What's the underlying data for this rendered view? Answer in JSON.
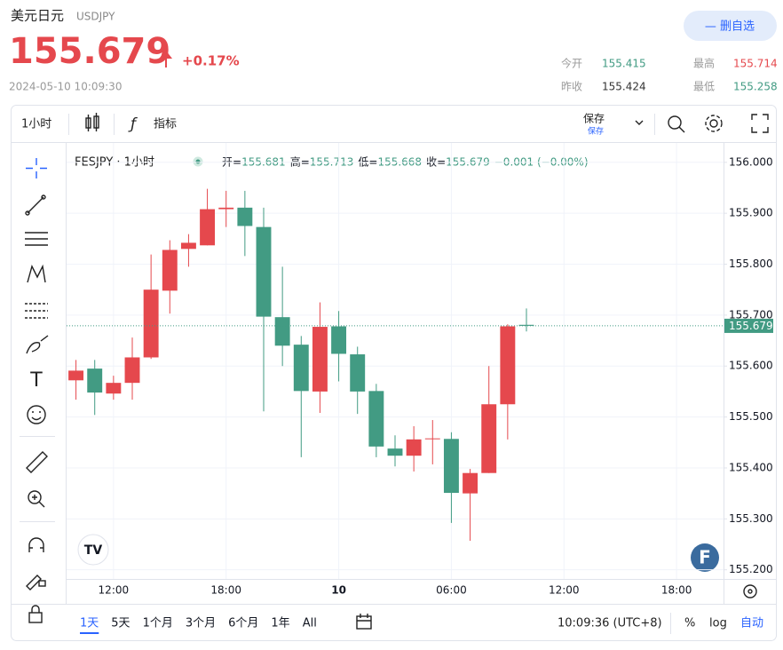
{
  "header": {
    "name": "美元日元",
    "symbol": "USDJPY",
    "price": "155.679",
    "change": "+0.17%",
    "time": "2024-05-10 10:09:30",
    "button": "— 删自选",
    "stats": [
      {
        "label": "今开",
        "value": "155.415"
      },
      {
        "label": "最高",
        "value": "155.714"
      },
      {
        "label": "昨收",
        "value": "155.424"
      },
      {
        "label": "最低",
        "value": "155.258"
      }
    ]
  },
  "toolbar": {
    "interval": "1小时",
    "indicators": "指标",
    "save": "保存",
    "save_sub": "保存"
  },
  "chart_data": {
    "type": "candlestick",
    "title": "FESJPY · 1小时",
    "legend": [
      {
        "key": "开=",
        "value": "155.681"
      },
      {
        "key": "高=",
        "value": "155.713"
      },
      {
        "key": "低=",
        "value": "155.668"
      },
      {
        "key": "收=",
        "value": "155.679"
      },
      {
        "key": "",
        "value": "−0.001 (−0.00%)"
      }
    ],
    "categories": [
      null,
      null,
      "12:00",
      null,
      null,
      null,
      null,
      null,
      "18:00",
      null,
      null,
      null,
      null,
      null,
      "10",
      null,
      null,
      null,
      null,
      null,
      "06:00",
      null,
      null,
      null,
      null,
      null,
      "12:00",
      null,
      null,
      null,
      null,
      null,
      "18:00",
      null,
      null
    ],
    "open": [
      155.572,
      155.595,
      155.546,
      155.567,
      155.617,
      155.748,
      155.83,
      155.837,
      155.908,
      155.911,
      155.873,
      155.696,
      155.642,
      155.55,
      155.678,
      155.623,
      155.551,
      155.438,
      155.424,
      155.457,
      155.457,
      155.35,
      155.39,
      155.525,
      155.681,
      null,
      null,
      null,
      null,
      null,
      null,
      null,
      null,
      null,
      null
    ],
    "high": [
      155.612,
      155.612,
      155.581,
      155.656,
      155.819,
      155.847,
      155.859,
      155.948,
      155.944,
      155.944,
      155.911,
      155.795,
      155.659,
      155.725,
      155.708,
      155.638,
      155.565,
      155.464,
      155.482,
      155.494,
      155.47,
      155.398,
      155.6,
      155.682,
      155.713,
      null,
      null,
      null,
      null,
      null,
      null,
      null,
      null,
      null,
      null
    ],
    "low": [
      155.534,
      155.504,
      155.534,
      155.534,
      155.614,
      155.703,
      155.795,
      155.837,
      155.873,
      155.816,
      155.511,
      155.6,
      155.421,
      155.508,
      155.57,
      155.506,
      155.421,
      155.403,
      155.393,
      155.407,
      155.292,
      155.257,
      155.39,
      155.456,
      155.668,
      null,
      null,
      null,
      null,
      null,
      null,
      null,
      null,
      null,
      null
    ],
    "close": [
      155.591,
      155.548,
      155.567,
      155.617,
      155.75,
      155.828,
      155.842,
      155.908,
      155.911,
      155.875,
      155.697,
      155.64,
      155.551,
      155.677,
      155.624,
      155.55,
      155.442,
      155.424,
      155.456,
      155.458,
      155.351,
      155.39,
      155.525,
      155.678,
      155.679,
      null,
      null,
      null,
      null,
      null,
      null,
      null,
      null,
      null,
      null
    ],
    "up_color": "#e5484d",
    "down_color": "#429b83",
    "ylim": [
      155.182,
      156.038
    ],
    "yticks": [
      {
        "value": 155.2,
        "label": "155.200"
      },
      {
        "value": 155.3,
        "label": "155.300"
      },
      {
        "value": 155.4,
        "label": "155.400"
      },
      {
        "value": 155.5,
        "label": "155.500"
      },
      {
        "value": 155.6,
        "label": "155.600"
      },
      {
        "value": 155.7,
        "label": "155.700"
      },
      {
        "value": 155.8,
        "label": "155.800"
      },
      {
        "value": 155.9,
        "label": "155.900"
      },
      {
        "value": 156.0,
        "label": "156.000"
      }
    ],
    "grid": true,
    "last_price_line": true
  },
  "bottom": {
    "ranges": [
      "1天",
      "5天",
      "1个月",
      "3个月",
      "6个月",
      "1年",
      "All"
    ],
    "clock": "10:09:36 (UTC+8)",
    "percent": "%",
    "log": "log",
    "auto": "自动"
  }
}
